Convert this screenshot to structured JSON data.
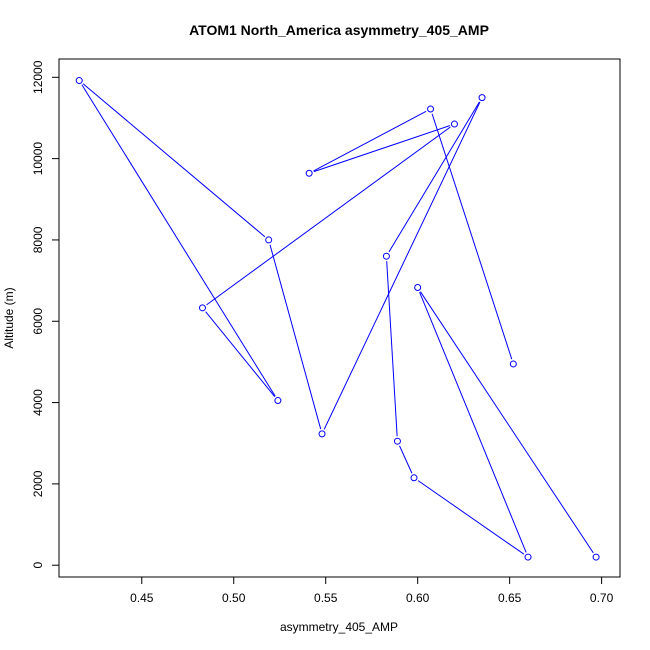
{
  "chart_data": {
    "type": "line",
    "title": "ATOM1 North_America asymmetry_405_AMP",
    "xlabel": "asymmetry_405_AMP",
    "ylabel": "Altitude (m)",
    "xlim": [
      0.405,
      0.71
    ],
    "ylim": [
      -290,
      12450
    ],
    "x_ticks": [
      0.45,
      0.5,
      0.55,
      0.6,
      0.65,
      0.7
    ],
    "x_tick_labels": [
      "0.45",
      "0.50",
      "0.55",
      "0.60",
      "0.65",
      "0.70"
    ],
    "y_ticks": [
      0,
      2000,
      4000,
      6000,
      8000,
      10000,
      12000
    ],
    "y_tick_labels": [
      "0",
      "2000",
      "4000",
      "6000",
      "8000",
      "10000",
      "12000"
    ],
    "series_color": "#0000ff",
    "points": [
      {
        "x": 0.697,
        "y": 200
      },
      {
        "x": 0.6,
        "y": 6830
      },
      {
        "x": 0.66,
        "y": 200
      },
      {
        "x": 0.598,
        "y": 2150
      },
      {
        "x": 0.589,
        "y": 3050
      },
      {
        "x": 0.583,
        "y": 7600
      },
      {
        "x": 0.635,
        "y": 11500
      },
      {
        "x": 0.548,
        "y": 3230
      },
      {
        "x": 0.519,
        "y": 8000
      },
      {
        "x": 0.416,
        "y": 11920
      },
      {
        "x": 0.524,
        "y": 4050
      },
      {
        "x": 0.483,
        "y": 6330
      },
      {
        "x": 0.62,
        "y": 10850
      },
      {
        "x": 0.541,
        "y": 9640
      },
      {
        "x": 0.607,
        "y": 11220
      },
      {
        "x": 0.652,
        "y": 4950
      }
    ]
  }
}
